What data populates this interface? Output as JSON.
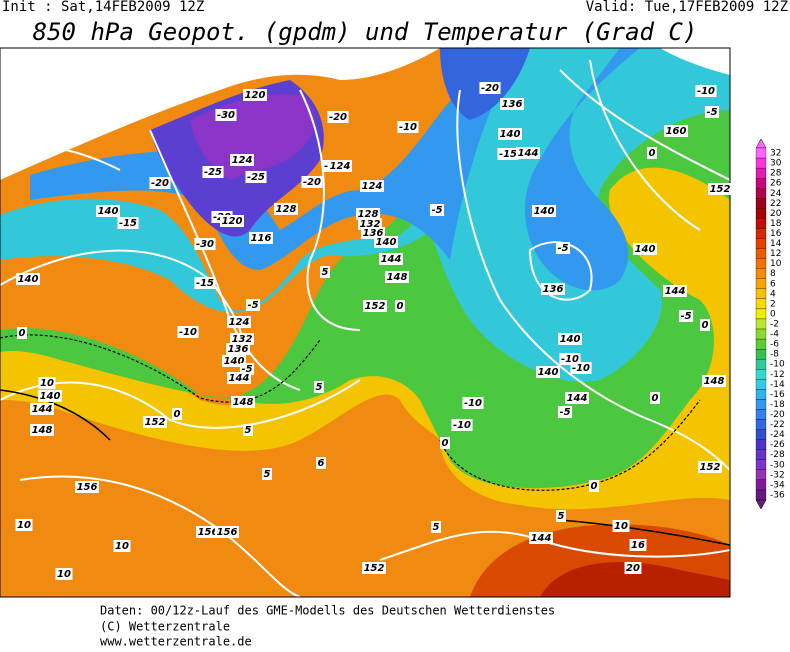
{
  "header": {
    "init": "Init : Sat,14FEB2009 12Z",
    "valid": "Valid: Tue,17FEB2009 12Z",
    "title": "850 hPa Geopot. (gpdm) und Temperatur (Grad C)"
  },
  "legend": {
    "labels": [
      "32",
      "30",
      "28",
      "26",
      "24",
      "22",
      "20",
      "18",
      "16",
      "14",
      "12",
      "10",
      "8",
      "6",
      "4",
      "2",
      "0",
      "-2",
      "-4",
      "-6",
      "-8",
      "-10",
      "-12",
      "-14",
      "-16",
      "-18",
      "-20",
      "-22",
      "-24",
      "-26",
      "-28",
      "-30",
      "-32",
      "-34",
      "-36"
    ],
    "colors": [
      "#ff66ff",
      "#ff33dd",
      "#e619b3",
      "#cc0080",
      "#b3004d",
      "#99001a",
      "#a80000",
      "#c40d00",
      "#d92600",
      "#e64000",
      "#ee5a00",
      "#f27300",
      "#f58c00",
      "#f5a600",
      "#f5c000",
      "#f5d900",
      "#eef000",
      "#bde633",
      "#8cd933",
      "#5ccc33",
      "#33c04d",
      "#33cc99",
      "#33d9cc",
      "#33cce6",
      "#33b3f0",
      "#3399f0",
      "#3380f0",
      "#3366e6",
      "#334dcc",
      "#4d33cc",
      "#6633cc",
      "#8033cc",
      "#9933b3",
      "#801a99",
      "#661a80"
    ]
  },
  "contour_labels": [
    "120",
    "-30",
    "-20",
    "-20",
    "136",
    "-10",
    "140",
    "-15",
    "144",
    "160",
    "-10",
    "-5",
    "0",
    "152",
    "-20",
    "-25",
    "124",
    "-25",
    "-20",
    "-25",
    "124",
    "124",
    "140",
    "-15",
    "-20",
    "120",
    "116",
    "128",
    "128",
    "132",
    "136",
    "140",
    "-30",
    "-5",
    "140",
    "140",
    "-5",
    "136",
    "144",
    "-5",
    "0",
    "-15",
    "-5",
    "-10",
    "124",
    "132",
    "136",
    "140",
    "-5",
    "144",
    "152",
    "0",
    "148",
    "144",
    "5",
    "140",
    "-10",
    "140",
    "-10",
    "144",
    "-5",
    "-10",
    "0",
    "148",
    "-10",
    "0",
    "5",
    "148",
    "152",
    "0",
    "5",
    "140",
    "10",
    "144",
    "148",
    "140",
    "0",
    "5",
    "6",
    "156",
    "156",
    "156",
    "10",
    "10",
    "10",
    "5",
    "5",
    "144",
    "10",
    "16",
    "20",
    "152",
    "152",
    "0"
  ],
  "footer": {
    "line1": "Daten: 00/12z-Lauf des GME-Modells des Deutschen Wetterdienstes",
    "line2": "(C) Wetterzentrale",
    "line3": "www.wetterzentrale.de"
  }
}
